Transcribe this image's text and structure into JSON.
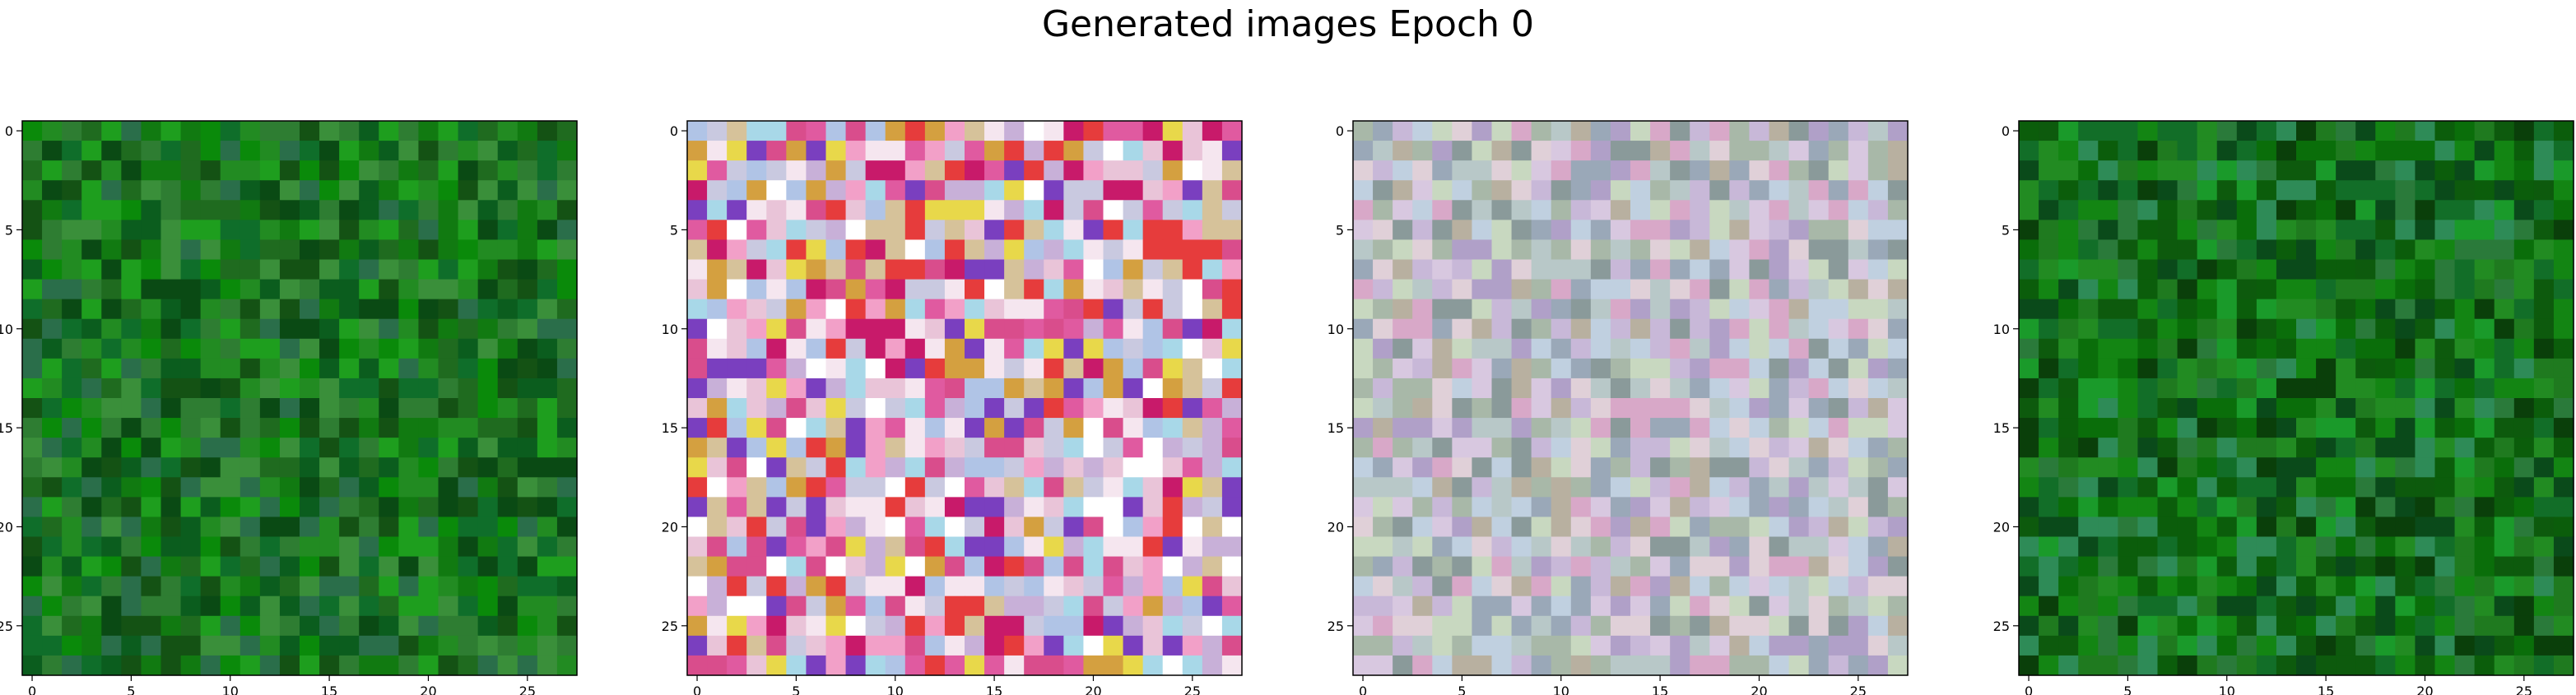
{
  "figure": {
    "title": "Generated images Epoch 0"
  },
  "colors": {
    "background": "#ffffff",
    "axis": "#000000"
  },
  "chart_data": [
    {
      "type": "heatmap",
      "title": "",
      "xlabel": "",
      "ylabel": "",
      "xlim": [
        -0.5,
        27.5
      ],
      "ylim": [
        27.5,
        -0.5
      ],
      "xticks": [
        0,
        5,
        10,
        15,
        20,
        25
      ],
      "yticks": [
        0,
        5,
        10,
        15,
        20,
        25
      ],
      "grid": false,
      "rows": 28,
      "cols": 28,
      "palette": [
        "#1f6b1f",
        "#117a11",
        "#0a8a0a",
        "#228b22",
        "#2e7d32",
        "#0b5d1e",
        "#145214",
        "#3a8f3a",
        "#1e9e1e",
        "#0f6e2a",
        "#2a6e4a",
        "#0a4a14"
      ],
      "seed": 11
    },
    {
      "type": "heatmap",
      "title": "",
      "xlabel": "",
      "ylabel": "",
      "xlim": [
        -0.5,
        27.5
      ],
      "ylim": [
        27.5,
        -0.5
      ],
      "xticks": [
        0,
        5,
        10,
        15,
        20,
        25
      ],
      "yticks": [
        0,
        5,
        10,
        15,
        20,
        25
      ],
      "grid": false,
      "rows": 28,
      "cols": 28,
      "palette": [
        "#f5e6ef",
        "#e9c4d8",
        "#c8b0d8",
        "#b0c4e6",
        "#d94d8c",
        "#c81a6a",
        "#e8d84a",
        "#f2a0c8",
        "#7a3fbf",
        "#e63c3c",
        "#d6c29a",
        "#a8d8e8",
        "#ffffff",
        "#e05aa0",
        "#c9c9e0",
        "#d4a040"
      ],
      "seed": 29
    },
    {
      "type": "heatmap",
      "title": "",
      "xlabel": "",
      "ylabel": "",
      "xlim": [
        -0.5,
        27.5
      ],
      "ylim": [
        27.5,
        -0.5
      ],
      "xticks": [
        0,
        5,
        10,
        15,
        20,
        25
      ],
      "yticks": [
        0,
        5,
        10,
        15,
        20,
        25
      ],
      "grid": false,
      "rows": 28,
      "cols": 28,
      "palette": [
        "#c8b8d8",
        "#b8c8c8",
        "#d8c8e0",
        "#a8b8a8",
        "#c0d0e0",
        "#d8a8c8",
        "#9aa8b8",
        "#b0a0c8",
        "#c8d8c0",
        "#e0d0d8",
        "#8a9a9a",
        "#b8b0a0"
      ],
      "seed": 47
    },
    {
      "type": "heatmap",
      "title": "",
      "xlabel": "",
      "ylabel": "",
      "xlim": [
        -0.5,
        27.5
      ],
      "ylim": [
        27.5,
        -0.5
      ],
      "xticks": [
        0,
        5,
        10,
        15,
        20,
        25
      ],
      "yticks": [
        0,
        5,
        10,
        15,
        20,
        25
      ],
      "grid": false,
      "rows": 28,
      "cols": 28,
      "palette": [
        "#0a6e0a",
        "#138513",
        "#1f7a1f",
        "#0b5d0b",
        "#228b22",
        "#2a7a3a",
        "#0a4a1a",
        "#1a9a2a",
        "#126e28",
        "#0d5a0d",
        "#2e8b57",
        "#0a3f0a"
      ],
      "seed": 83
    }
  ]
}
